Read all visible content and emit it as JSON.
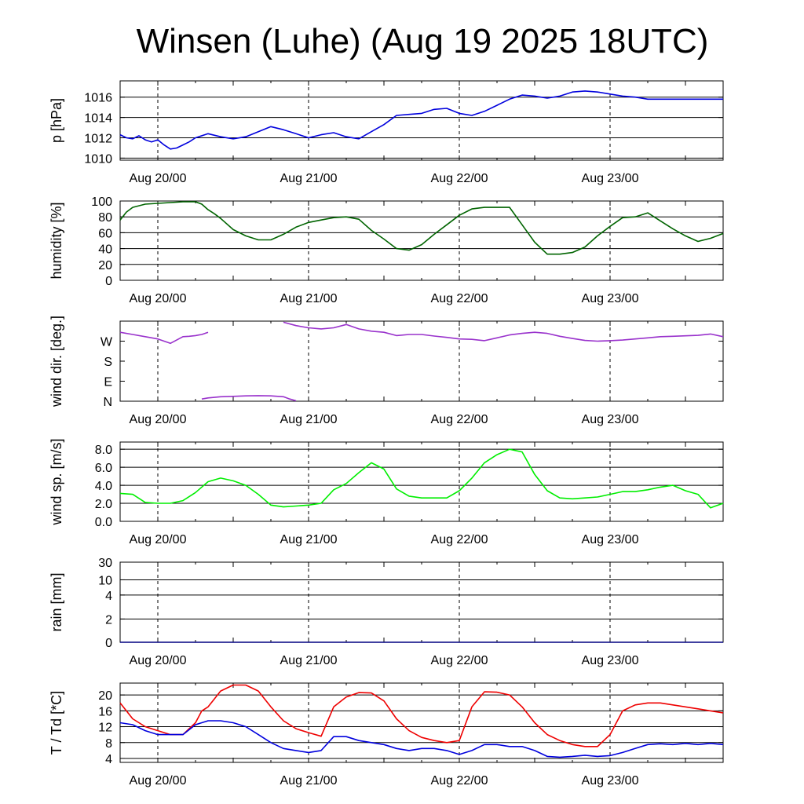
{
  "title": "Winsen (Luhe) (Aug 19 2025 18UTC)",
  "x_tick_labels": [
    "Aug 20/00",
    "Aug 21/00",
    "Aug 22/00",
    "Aug 23/00"
  ],
  "colors": {
    "pressure": "#0000dd",
    "humidity": "#006400",
    "wind_dir": "#9932cc",
    "wind_speed": "#00ee00",
    "rain": "#000080",
    "temperature": "#ee0000",
    "dewpoint": "#0000dd"
  },
  "chart_data": [
    {
      "type": "line",
      "ylabel": "p [hPa]",
      "yticks": [
        "1010",
        "1012",
        "1014",
        "1016"
      ],
      "ylim": [
        1009.8,
        1017.6
      ],
      "grid": true,
      "x_unit": "hours since Aug 19 18UTC",
      "series": [
        {
          "color_key": "pressure",
          "x": [
            0,
            1,
            2,
            3,
            4,
            5,
            6,
            7,
            8,
            9,
            10,
            11,
            12,
            14,
            16,
            18,
            20,
            22,
            24,
            26,
            28,
            30,
            32,
            34,
            36,
            38,
            40,
            42,
            44,
            46,
            48,
            50,
            52,
            54,
            56,
            58,
            60,
            62,
            64,
            66,
            68,
            70,
            72,
            74,
            76,
            78,
            80,
            82,
            84,
            86,
            88,
            90,
            92,
            94,
            96
          ],
          "y": [
            1012.3,
            1012.0,
            1011.9,
            1012.2,
            1011.8,
            1011.6,
            1011.8,
            1011.3,
            1010.9,
            1011.0,
            1011.3,
            1011.6,
            1012.0,
            1012.4,
            1012.1,
            1011.9,
            1012.1,
            1012.6,
            1013.1,
            1012.8,
            1012.4,
            1012.0,
            1012.3,
            1012.5,
            1012.1,
            1011.9,
            1012.6,
            1013.3,
            1014.2,
            1014.3,
            1014.4,
            1014.8,
            1014.9,
            1014.4,
            1014.2,
            1014.6,
            1015.2,
            1015.8,
            1016.2,
            1016.1,
            1015.9,
            1016.1,
            1016.5,
            1016.6,
            1016.5,
            1016.3,
            1016.1,
            1016.0,
            1015.8,
            1015.8,
            1015.8,
            1015.8,
            1015.8,
            1015.8,
            1015.8
          ]
        }
      ]
    },
    {
      "type": "line",
      "ylabel": "humidity [%]",
      "yticks": [
        "0",
        "20",
        "40",
        "60",
        "80",
        "100"
      ],
      "ylim": [
        0,
        100
      ],
      "grid": true,
      "series": [
        {
          "color_key": "humidity",
          "x": [
            0,
            1,
            2,
            4,
            6,
            8,
            10,
            12,
            13,
            14,
            15,
            16,
            18,
            20,
            22,
            24,
            26,
            28,
            30,
            32,
            34,
            36,
            38,
            40,
            42,
            44,
            46,
            48,
            50,
            52,
            54,
            56,
            58,
            60,
            62,
            64,
            66,
            68,
            70,
            72,
            74,
            76,
            78,
            80,
            82,
            84,
            86,
            88,
            90,
            92,
            94,
            96
          ],
          "y": [
            76,
            86,
            92,
            96,
            97,
            98,
            99,
            99,
            96,
            89,
            84,
            78,
            64,
            56,
            51,
            51,
            58,
            67,
            73,
            76,
            79,
            80,
            77,
            63,
            52,
            40,
            38,
            45,
            58,
            70,
            82,
            90,
            92,
            92,
            92,
            70,
            48,
            33,
            33,
            35,
            42,
            56,
            68,
            79,
            80,
            85,
            75,
            65,
            56,
            49,
            53,
            59
          ]
        }
      ]
    },
    {
      "type": "line",
      "ylabel": "wind dir. [deg.]",
      "yticks": [
        "N",
        "S",
        "E",
        "W"
      ],
      "ytick_values": [
        0,
        180,
        90,
        270
      ],
      "ylim": [
        0,
        360
      ],
      "grid": false,
      "series": [
        {
          "color_key": "wind_dir",
          "x": [
            0,
            2,
            4,
            6,
            8,
            10,
            11,
            12,
            13,
            14
          ],
          "y": [
            310,
            300,
            290,
            280,
            260,
            290,
            292,
            295,
            300,
            310
          ]
        },
        {
          "color_key": "wind_dir",
          "x": [
            26,
            28,
            30,
            32,
            34,
            36,
            38,
            40,
            42,
            44,
            46,
            48,
            50,
            52,
            54,
            56,
            58,
            60,
            62,
            64,
            66,
            68,
            70,
            72,
            74,
            76,
            78,
            80,
            82,
            84,
            86,
            88,
            90,
            92,
            94,
            96
          ],
          "y": [
            355,
            340,
            330,
            325,
            330,
            345,
            325,
            315,
            310,
            295,
            300,
            300,
            293,
            287,
            280,
            278,
            272,
            285,
            298,
            305,
            310,
            305,
            292,
            282,
            273,
            270,
            272,
            275,
            280,
            285,
            290,
            292,
            294,
            296,
            302,
            290
          ]
        },
        {
          "color_key": "wind_dir",
          "x": [
            13,
            14,
            16,
            18,
            20,
            22,
            24,
            26,
            27,
            28
          ],
          "y": [
            10,
            15,
            20,
            22,
            24,
            25,
            24,
            20,
            10,
            2
          ]
        }
      ]
    },
    {
      "type": "line",
      "ylabel": "wind sp. [m/s]",
      "yticks": [
        "0.0",
        "2.0",
        "4.0",
        "6.0",
        "8.0"
      ],
      "ylim": [
        0,
        8.8
      ],
      "grid": true,
      "series": [
        {
          "color_key": "wind_speed",
          "x": [
            0,
            2,
            4,
            6,
            8,
            10,
            12,
            14,
            16,
            18,
            20,
            22,
            24,
            26,
            28,
            30,
            32,
            34,
            36,
            38,
            40,
            42,
            44,
            46,
            48,
            50,
            52,
            54,
            56,
            58,
            60,
            62,
            64,
            66,
            68,
            70,
            72,
            74,
            76,
            78,
            80,
            82,
            84,
            86,
            88,
            90,
            92,
            94,
            96
          ],
          "y": [
            3.1,
            3.0,
            2.1,
            2.0,
            2.0,
            2.3,
            3.2,
            4.4,
            4.8,
            4.5,
            4.0,
            3.0,
            1.8,
            1.6,
            1.7,
            1.8,
            2.0,
            3.5,
            4.2,
            5.4,
            6.5,
            5.8,
            3.6,
            2.8,
            2.6,
            2.6,
            2.6,
            3.4,
            4.8,
            6.5,
            7.4,
            8.0,
            7.7,
            5.2,
            3.4,
            2.6,
            2.5,
            2.6,
            2.7,
            3.0,
            3.3,
            3.3,
            3.5,
            3.8,
            4.0,
            3.4,
            3.0,
            1.5,
            2.0
          ]
        }
      ]
    },
    {
      "type": "line",
      "ylabel": "rain [mm]",
      "yticks": [
        "0",
        "2",
        "4",
        "10",
        "30"
      ],
      "ytick_values": [
        0,
        2,
        4,
        10,
        30
      ],
      "scale": "nonlinear",
      "grid": true,
      "series": [
        {
          "color_key": "rain",
          "x": [
            0,
            96
          ],
          "y": [
            0,
            0
          ]
        }
      ]
    },
    {
      "type": "line",
      "ylabel": "T / Td [*C]",
      "yticks": [
        "4",
        "8",
        "12",
        "16",
        "20"
      ],
      "ylim": [
        3,
        23
      ],
      "grid": true,
      "series": [
        {
          "color_key": "temperature",
          "x": [
            0,
            2,
            4,
            6,
            8,
            10,
            12,
            13,
            14,
            15,
            16,
            18,
            20,
            22,
            24,
            26,
            28,
            30,
            32,
            34,
            36,
            38,
            40,
            42,
            44,
            46,
            48,
            50,
            52,
            54,
            56,
            58,
            60,
            62,
            64,
            66,
            68,
            70,
            72,
            74,
            76,
            78,
            80,
            82,
            84,
            86,
            88,
            90,
            92,
            94,
            96
          ],
          "y": [
            18,
            14,
            12,
            11,
            10,
            10,
            13,
            16,
            17,
            19,
            21,
            22.5,
            22.5,
            21,
            17,
            13.5,
            11.5,
            10.5,
            9.6,
            17,
            19.5,
            20.6,
            20.5,
            18.5,
            14,
            11,
            9.3,
            8.5,
            8,
            8.5,
            17,
            20.8,
            20.7,
            20,
            17,
            13,
            10,
            8.5,
            7.5,
            7,
            7,
            10,
            16,
            17.5,
            18,
            18,
            17.5,
            17,
            16.5,
            16,
            15.5
          ]
        },
        {
          "color_key": "dewpoint",
          "x": [
            0,
            2,
            4,
            6,
            8,
            10,
            12,
            14,
            16,
            18,
            20,
            22,
            24,
            26,
            28,
            30,
            32,
            34,
            36,
            38,
            40,
            42,
            44,
            46,
            48,
            50,
            52,
            54,
            56,
            58,
            60,
            62,
            64,
            66,
            68,
            70,
            72,
            74,
            76,
            78,
            80,
            82,
            84,
            86,
            88,
            90,
            92,
            94,
            96
          ],
          "y": [
            13,
            12.5,
            11,
            10,
            10,
            10,
            12.5,
            13.5,
            13.5,
            13,
            12,
            10,
            8,
            6.5,
            6,
            5.5,
            6,
            9.5,
            9.5,
            8.5,
            8,
            7.5,
            6.5,
            6,
            6.5,
            6.5,
            6,
            5,
            6,
            7.5,
            7.5,
            7,
            7,
            6,
            4.5,
            4.3,
            4.5,
            4.8,
            4.5,
            4.7,
            5.5,
            6.5,
            7.5,
            7.7,
            7.5,
            7.8,
            7.5,
            7.8,
            7.5
          ]
        }
      ]
    }
  ]
}
